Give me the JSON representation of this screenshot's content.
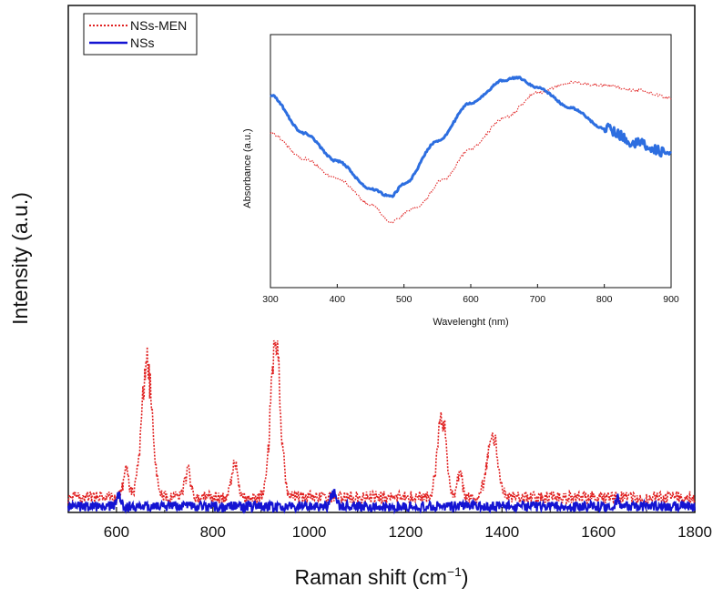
{
  "chart_data": [
    {
      "type": "line",
      "title": "",
      "xlabel": "Raman shift (cm",
      "xlabel_sup": "−1",
      "xlabel_close": ")",
      "ylabel": "Intensity (a.u.)",
      "xlim": [
        500,
        1800
      ],
      "ylim": [
        0,
        1
      ],
      "xticks": [
        600,
        800,
        1000,
        1200,
        1400,
        1600,
        1800
      ],
      "x_tick_labels": [
        "600",
        "800",
        "1000",
        "1200",
        "1400",
        "1600",
        "1800"
      ],
      "legend_position": "top-left",
      "series": [
        {
          "name": "NSs-MEN",
          "color": "#e02020",
          "style": "dotted",
          "baseline": 0.03,
          "noise": 0.012,
          "peaks": [
            {
              "x": 620,
              "h": 0.05,
              "w": 6
            },
            {
              "x": 663,
              "h": 0.26,
              "w": 11
            },
            {
              "x": 748,
              "h": 0.05,
              "w": 6
            },
            {
              "x": 845,
              "h": 0.06,
              "w": 7
            },
            {
              "x": 930,
              "h": 0.31,
              "w": 10
            },
            {
              "x": 1275,
              "h": 0.16,
              "w": 9
            },
            {
              "x": 1312,
              "h": 0.05,
              "w": 5
            },
            {
              "x": 1380,
              "h": 0.12,
              "w": 11
            }
          ]
        },
        {
          "name": "NSs",
          "color": "#1414d2",
          "style": "solid",
          "baseline": 0.012,
          "noise": 0.01,
          "peaks": [
            {
              "x": 605,
              "h": 0.02,
              "w": 4
            },
            {
              "x": 1050,
              "h": 0.025,
              "w": 5
            },
            {
              "x": 1640,
              "h": 0.015,
              "w": 4
            }
          ]
        }
      ]
    },
    {
      "type": "line",
      "title": "",
      "xlabel": "Wavelenght (nm)",
      "ylabel": "Absorbance (a.u.)",
      "xlim": [
        300,
        900
      ],
      "ylim": [
        0,
        1
      ],
      "xticks": [
        300,
        400,
        500,
        600,
        700,
        800,
        900
      ],
      "x_tick_labels": [
        "300",
        "400",
        "500",
        "600",
        "700",
        "800",
        "900"
      ],
      "series": [
        {
          "name": "NSs-MEN",
          "color": "#e02020",
          "style": "dotted",
          "x": [
            300,
            350,
            400,
            450,
            480,
            520,
            560,
            600,
            650,
            700,
            750,
            800,
            850,
            900
          ],
          "y": [
            0.61,
            0.51,
            0.43,
            0.33,
            0.26,
            0.32,
            0.43,
            0.55,
            0.67,
            0.77,
            0.81,
            0.8,
            0.78,
            0.75
          ]
        },
        {
          "name": "NSs",
          "color": "#2d6ee0",
          "style": "solid",
          "x": [
            300,
            350,
            400,
            450,
            480,
            500,
            550,
            600,
            650,
            670,
            700,
            750,
            800,
            850,
            900
          ],
          "y": [
            0.76,
            0.61,
            0.5,
            0.39,
            0.36,
            0.41,
            0.58,
            0.73,
            0.82,
            0.83,
            0.79,
            0.71,
            0.63,
            0.57,
            0.53
          ]
        }
      ]
    }
  ]
}
